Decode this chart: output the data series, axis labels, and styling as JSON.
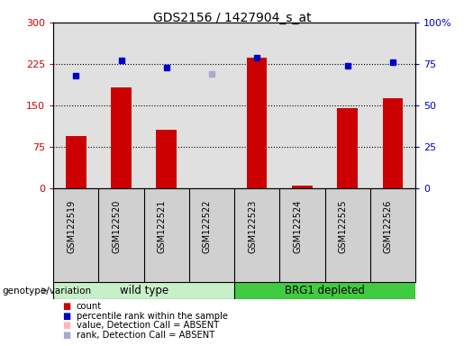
{
  "title": "GDS2156 / 1427904_s_at",
  "samples": [
    "GSM122519",
    "GSM122520",
    "GSM122521",
    "GSM122522",
    "GSM122523",
    "GSM122524",
    "GSM122525",
    "GSM122526"
  ],
  "count_values": [
    95,
    182,
    107,
    null,
    237,
    5,
    145,
    163
  ],
  "count_absent": [
    false,
    false,
    false,
    true,
    false,
    false,
    false,
    false
  ],
  "rank_values": [
    68,
    77,
    73,
    69,
    79,
    null,
    74,
    76
  ],
  "rank_absent": [
    false,
    false,
    false,
    true,
    false,
    true,
    false,
    false
  ],
  "count_color": "#cc0000",
  "count_absent_color": "#ffb6c1",
  "rank_color": "#0000cc",
  "rank_absent_color": "#aaaacc",
  "ylim_left": [
    0,
    300
  ],
  "ylim_right": [
    0,
    100
  ],
  "yticks_left": [
    0,
    75,
    150,
    225,
    300
  ],
  "ytick_labels_left": [
    "0",
    "75",
    "150",
    "225",
    "300"
  ],
  "yticks_right": [
    0,
    25,
    50,
    75,
    100
  ],
  "ytick_labels_right": [
    "0",
    "25",
    "50",
    "75",
    "100%"
  ],
  "hlines": [
    75,
    150,
    225
  ],
  "plot_bg": "#e0e0e0",
  "label_bg": "#d0d0d0",
  "wt_color": "#c8f0c8",
  "brg_color": "#40cc40",
  "legend_items": [
    {
      "label": "count",
      "color": "#cc0000"
    },
    {
      "label": "percentile rank within the sample",
      "color": "#0000cc"
    },
    {
      "label": "value, Detection Call = ABSENT",
      "color": "#ffb6c1"
    },
    {
      "label": "rank, Detection Call = ABSENT",
      "color": "#aaaacc"
    }
  ],
  "bar_width": 0.45
}
